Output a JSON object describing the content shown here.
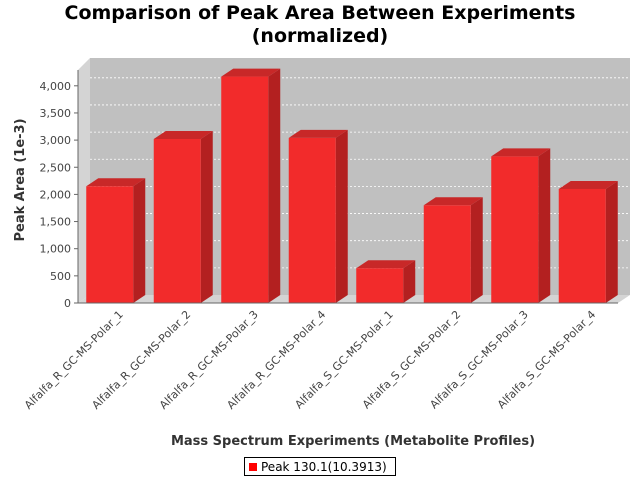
{
  "chart_data": {
    "type": "bar",
    "title_line1": "Comparison of Peak Area Between Experiments",
    "title_line2": "(normalized)",
    "xlabel": "Mass Spectrum Experiments (Metabolite Profiles)",
    "ylabel": "Peak Area (1e-3)",
    "categories": [
      "Alfalfa_R_GC-MS-Polar_1",
      "Alfalfa_R_GC-MS-Polar_2",
      "Alfalfa_R_GC-MS-Polar_3",
      "Alfalfa_R_GC-MS-Polar_4",
      "Alfalfa_S_GC-MS-Polar_1",
      "Alfalfa_S_GC-MS-Polar_2",
      "Alfalfa_S_GC-MS-Polar_3",
      "Alfalfa_S_GC-MS-Polar_4"
    ],
    "series": [
      {
        "name": "Peak 130.1(10.3913)",
        "color": "#ff0000",
        "values": [
          2150,
          3020,
          4170,
          3040,
          640,
          1800,
          2700,
          2100
        ]
      }
    ],
    "ylim": [
      0,
      4200
    ],
    "yticks": [
      0,
      500,
      1000,
      1500,
      2000,
      2500,
      3000,
      3500,
      4000
    ],
    "ytick_labels": [
      "0",
      "500",
      "1,000",
      "1,500",
      "2,000",
      "2,500",
      "3,000",
      "3,500",
      "4,000"
    ],
    "grid": true,
    "legend_position": "bottom-center",
    "plot_background": "#c0c0c0",
    "wall_color": "#d4d4d4"
  }
}
